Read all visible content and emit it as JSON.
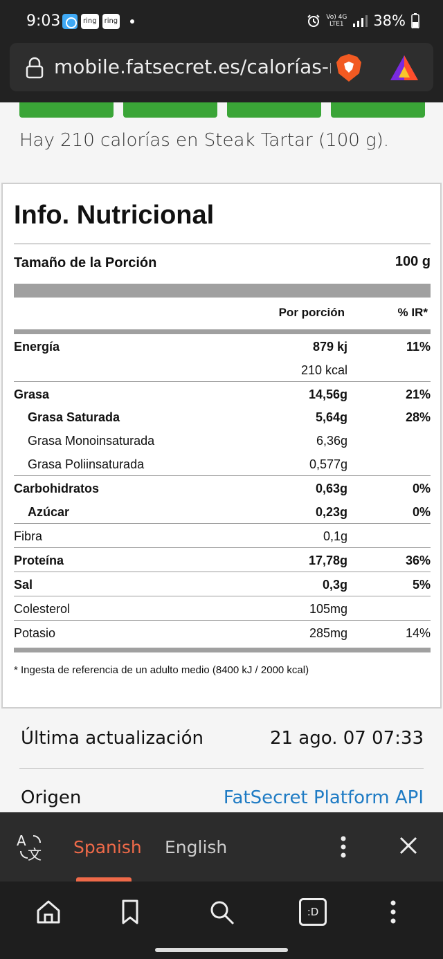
{
  "status_bar": {
    "time": "9:03",
    "notif_ring_1": "ring",
    "notif_ring_2": "ring",
    "net_top": "Vo) 4G",
    "net_bottom": "LTE1",
    "battery": "38%"
  },
  "browser": {
    "url": "mobile.fatsecret.es/calorías-nu"
  },
  "intro_text": "Hay 210 calorías en Steak Tartar (100 g).",
  "nutrition": {
    "title": "Info. Nutricional",
    "serving_label": "Tamaño de la Porción",
    "serving_value": "100 g",
    "col_per_serving": "Por porción",
    "col_ir": "% IR*",
    "rows": [
      {
        "name": "Energía",
        "value": "879 kj",
        "pct": "11%"
      },
      {
        "name": "",
        "value": "210 kcal",
        "pct": ""
      },
      {
        "name": "Grasa",
        "value": "14,56g",
        "pct": "21%"
      },
      {
        "name": "Grasa Saturada",
        "value": "5,64g",
        "pct": "28%"
      },
      {
        "name": "Grasa Monoinsaturada",
        "value": "6,36g",
        "pct": ""
      },
      {
        "name": "Grasa Poliinsaturada",
        "value": "0,577g",
        "pct": ""
      },
      {
        "name": "Carbohidratos",
        "value": "0,63g",
        "pct": "0%"
      },
      {
        "name": "Azúcar",
        "value": "0,23g",
        "pct": "0%"
      },
      {
        "name": "Fibra",
        "value": "0,1g",
        "pct": ""
      },
      {
        "name": "Proteína",
        "value": "17,78g",
        "pct": "36%"
      },
      {
        "name": "Sal",
        "value": "0,3g",
        "pct": "5%"
      },
      {
        "name": "Colesterol",
        "value": "105mg",
        "pct": ""
      },
      {
        "name": "Potasio",
        "value": "285mg",
        "pct": "14%"
      }
    ],
    "footnote": "* Ingesta de referencia de un adulto medio (8400 kJ / 2000 kcal)"
  },
  "meta": {
    "updated_label": "Última actualización",
    "updated_value": "21 ago. 07 07:33",
    "source_label": "Origen",
    "source_value": "FatSecret Platform API"
  },
  "translate_bar": {
    "active_language": "Spanish",
    "other_language": "English"
  },
  "bottom_nav": {
    "tabs_label": ":D"
  },
  "colors": {
    "accent_green": "#3aa537",
    "translate_active": "#ef6a49",
    "link": "#1e7bc4"
  }
}
